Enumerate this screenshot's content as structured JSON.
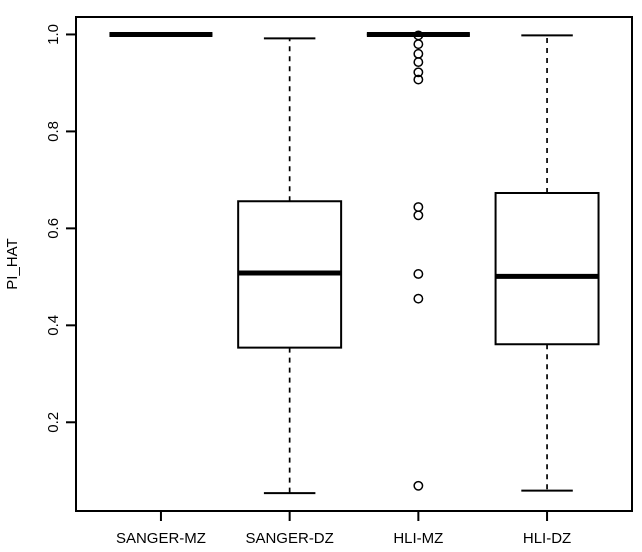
{
  "chart_data": {
    "type": "boxplot",
    "title": "",
    "xlabel": "",
    "ylabel": "PI_HAT",
    "categories": [
      "SANGER-MZ",
      "SANGER-DZ",
      "HLI-MZ",
      "HLI-DZ"
    ],
    "y_ticks": [
      0.2,
      0.4,
      0.6,
      0.8,
      1.0
    ],
    "y_tick_labels": [
      "0.2",
      "0.4",
      "0.6",
      "0.8",
      "1.0"
    ],
    "ylim": [
      0.017,
      1.036
    ],
    "xlim": [
      0.34,
      4.66
    ],
    "box_width": 0.8,
    "cap_width": 0.4,
    "grid": false,
    "legend": "none",
    "whisker_style": "dashed",
    "colors": {
      "stroke": "#000000",
      "background": "#ffffff",
      "box_fill": "#ffffff"
    },
    "series": [
      {
        "name": "SANGER-MZ",
        "position": 1,
        "whisker_low": 1.0,
        "q1": 1.0,
        "median": 1.0,
        "q3": 1.0,
        "whisker_high": 1.0,
        "outliers": []
      },
      {
        "name": "SANGER-DZ",
        "position": 2,
        "whisker_low": 0.054,
        "q1": 0.354,
        "median": 0.508,
        "q3": 0.656,
        "whisker_high": 0.992,
        "outliers": []
      },
      {
        "name": "HLI-MZ",
        "position": 3,
        "whisker_low": 1.0,
        "q1": 1.0,
        "median": 1.0,
        "q3": 1.0,
        "whisker_high": 1.0,
        "outliers": [
          0.998,
          0.98,
          0.96,
          0.943,
          0.922,
          0.907,
          0.644,
          0.627,
          0.506,
          0.455,
          0.069
        ]
      },
      {
        "name": "HLI-DZ",
        "position": 4,
        "whisker_low": 0.059,
        "q1": 0.361,
        "median": 0.501,
        "q3": 0.673,
        "whisker_high": 0.998,
        "outliers": []
      }
    ]
  }
}
